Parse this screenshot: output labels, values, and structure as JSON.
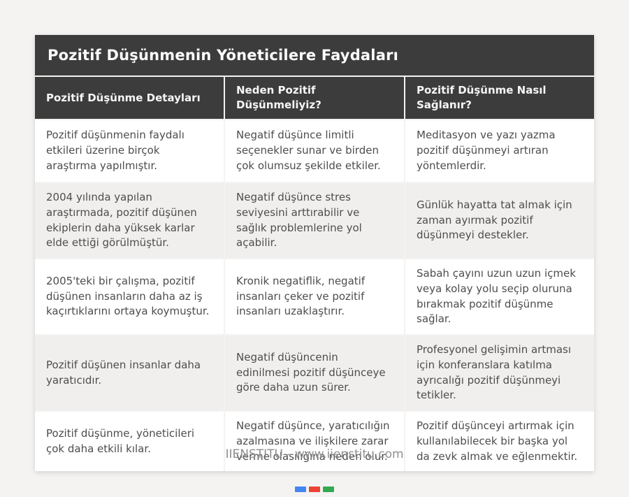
{
  "page": {
    "title": "Pozitif Düşünmenin Yöneticilere Faydaları",
    "footer": "IIENSTITU - www.iienstitu.com"
  },
  "table": {
    "columns": [
      "Pozitif Düşünme Detayları",
      "Neden Pozitif Düşünmeliyiz?",
      "Pozitif Düşünme Nasıl Sağlanır?"
    ],
    "rows": [
      [
        "Pozitif düşünmenin faydalı etkileri üzerine birçok araştırma yapılmıştır.",
        "Negatif düşünce limitli seçenekler sunar ve birden çok olumsuz şekilde etkiler.",
        "Meditasyon ve yazı yazma pozitif düşünmeyi artıran yöntemlerdir."
      ],
      [
        "2004 yılında yapılan araştırmada, pozitif düşünen ekiplerin daha yüksek karlar elde ettiği görülmüştür.",
        "Negatif düşünce stres seviyesini arttırabilir ve sağlık problemlerine yol açabilir.",
        "Günlük hayatta tat almak için zaman ayırmak pozitif düşünmeyi destekler."
      ],
      [
        "2005'teki bir çalışma, pozitif düşünen insanların daha az iş kaçırtıklarını ortaya koymuştur.",
        "Kronik negatiflik, negatif insanları çeker ve pozitif insanları uzaklaştırır.",
        "Sabah çayını uzun uzun içmek veya kolay yolu seçip oluruna bırakmak pozitif düşünme sağlar."
      ],
      [
        "Pozitif düşünen insanlar daha yaratıcıdır.",
        "Negatif düşüncenin edinilmesi pozitif düşünceye göre daha uzun sürer.",
        "Profesyonel gelişimin artması için konferanslara katılma ayrıcalığı pozitif düşünmeyi tetikler."
      ],
      [
        "Pozitif düşünme, yöneticileri çok daha etkili kılar.",
        "Negatif düşünce, yaratıcılığın azalmasına ve ilişkilere zarar verme olasılığına neden olur.",
        "Pozitif düşünceyi artırmak için kullanılabilecek bir başka yol da zevk almak ve eğlenmektir."
      ]
    ]
  },
  "colors": {
    "page_background": "#f4f3f2",
    "header_background": "#3d3c3c",
    "header_text": "#f6f6f6",
    "row_background": "#ffffff",
    "row_alt_background": "#f0efee",
    "body_text": "#4e4d4d",
    "footer_text": "#8f8f8f",
    "brand_bar_blue": "#4285f4",
    "brand_bar_red": "#ea4335",
    "brand_bar_green": "#34a853"
  }
}
